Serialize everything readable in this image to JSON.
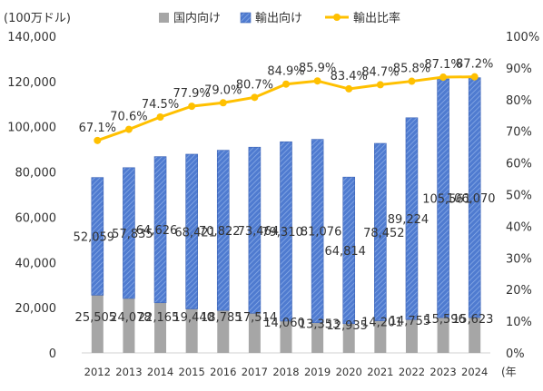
{
  "chart_data": {
    "type": "bar",
    "y_unit_label": "(100万ドル)",
    "x_unit_label": "(年",
    "categories": [
      "2012",
      "2013",
      "2014",
      "2015",
      "2016",
      "2017",
      "2018",
      "2019",
      "2020",
      "2021",
      "2022",
      "2023",
      "2024"
    ],
    "series": [
      {
        "name": "国内向け",
        "kind": "bar",
        "axis": "left",
        "color": "#a6a6a6",
        "values": [
          25505,
          24078,
          22165,
          19440,
          18785,
          17514,
          14060,
          13353,
          12935,
          14201,
          14755,
          15596,
          15623
        ],
        "labels": [
          "25,505",
          "24,078",
          "22,165",
          "19,440",
          "18,785",
          "17,514",
          "14,060",
          "13,353",
          "12,935",
          "14,201",
          "14,755",
          "15,596",
          "15,623"
        ]
      },
      {
        "name": "輸出向け",
        "kind": "bar",
        "axis": "left",
        "color": "#4472c4",
        "pattern": "diagonal-hatch",
        "values": [
          52059,
          57835,
          64626,
          68421,
          70822,
          73464,
          79310,
          81076,
          64814,
          78452,
          89224,
          105561,
          106070
        ],
        "labels": [
          "52,059",
          "57,835",
          "64,626",
          "68,421",
          "70,822",
          "73,464",
          "79,310",
          "81,076",
          "64,814",
          "78,452",
          "89,224",
          "105,561",
          "106,070"
        ]
      },
      {
        "name": "輸出比率",
        "kind": "line",
        "axis": "right",
        "color": "#ffc000",
        "values": [
          67.1,
          70.6,
          74.5,
          77.9,
          79.0,
          80.7,
          84.9,
          85.9,
          83.4,
          84.7,
          85.8,
          87.1,
          87.2
        ],
        "labels": [
          "67.1%",
          "70.6%",
          "74.5%",
          "77.9%",
          "79.0%",
          "80.7%",
          "84.9%",
          "85.9%",
          "83.4%",
          "84.7%",
          "85.8%",
          "87.1%",
          "87.2%"
        ]
      }
    ],
    "ylim": [
      0,
      140000
    ],
    "y2lim": [
      0,
      100
    ],
    "yticks": [
      "0",
      "20,000",
      "40,000",
      "60,000",
      "80,000",
      "100,000",
      "120,000",
      "140,000"
    ],
    "y2ticks": [
      "0%",
      "10%",
      "20%",
      "30%",
      "40%",
      "50%",
      "60%",
      "70%",
      "80%",
      "90%",
      "100%"
    ],
    "stacked": true,
    "legend_position": "top",
    "grid": false
  }
}
